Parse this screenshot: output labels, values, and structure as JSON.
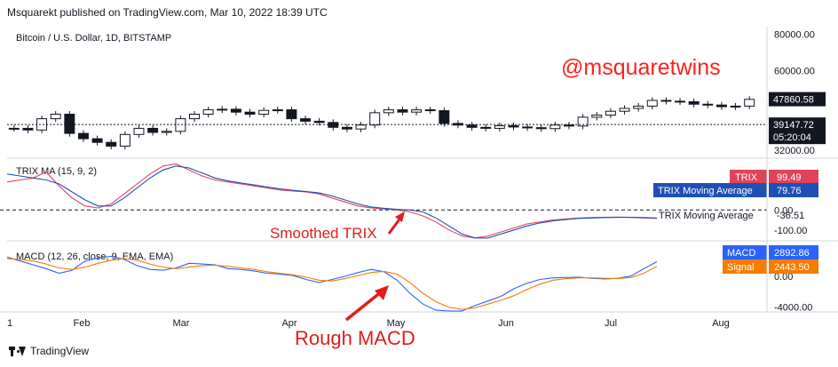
{
  "header": {
    "text": "Msquarekt published on TradingView.com, Mar 10, 2022 18:39 UTC"
  },
  "footer": {
    "brand": "TradingView"
  },
  "colors": {
    "trix": "#e0435a",
    "trix_ma": "#1e4fb4",
    "macd": "#2962ff",
    "signal": "#f57c00",
    "watermark": "#ff1f1f",
    "annotation": "#e31b1b",
    "candle": "#131722"
  },
  "chart_data": [
    {
      "type": "candlestick",
      "title": "Bitcoin / U.S. Dollar, 1D, BITSTAMP",
      "watermark": "@msquaretwins",
      "yticks": [
        "80000.00",
        "60000.00",
        "32000.00"
      ],
      "last_price_label": "47860.58",
      "crosshair_price_label": "39147.72",
      "countdown_label": "05:20:04",
      "ylim": [
        30000,
        85000
      ],
      "scale": "log",
      "closes": [
        38000,
        37500,
        41000,
        42500,
        36500,
        35000,
        34000,
        33000,
        36200,
        38000,
        36800,
        37100,
        41000,
        42500,
        44000,
        44200,
        43200,
        42500,
        43800,
        44000,
        41000,
        40200,
        39800,
        38300,
        37800,
        39000,
        43000,
        44000,
        43200,
        44000,
        43700,
        39500,
        39000,
        38300,
        38000,
        38800,
        38400,
        38200,
        37900,
        39000,
        38700,
        41500,
        42200,
        43500,
        44500,
        45300,
        47400,
        47100,
        46900,
        46000,
        45700,
        45100,
        45300,
        47800
      ],
      "series_note": ""
    },
    {
      "type": "line",
      "title": "TRIX MA (15, 9, 2)",
      "yticks": [
        "0.00",
        "-100.00"
      ],
      "ylim": [
        -150,
        250
      ],
      "series": [
        {
          "name": "TRIX",
          "last_label": "99.49",
          "values": [
            140,
            150,
            160,
            190,
            120,
            60,
            20,
            10,
            30,
            80,
            130,
            180,
            220,
            230,
            200,
            170,
            150,
            140,
            130,
            120,
            110,
            100,
            95,
            90,
            80,
            60,
            40,
            20,
            10,
            5,
            0,
            -10,
            -30,
            -60,
            -100,
            -130,
            -140,
            -130,
            -110,
            -90,
            -70,
            -60,
            -50,
            -45,
            -40,
            -38,
            -37,
            -36,
            -37,
            -40,
            -42,
            99
          ]
        },
        {
          "name": "TRIX Moving Average",
          "last_label": "79.76",
          "values": [
            180,
            170,
            160,
            150,
            130,
            90,
            50,
            20,
            20,
            60,
            110,
            160,
            200,
            220,
            210,
            185,
            160,
            145,
            135,
            125,
            115,
            105,
            98,
            92,
            85,
            70,
            50,
            30,
            15,
            8,
            3,
            0,
            -10,
            -40,
            -80,
            -120,
            -140,
            -140,
            -120,
            -100,
            -80,
            -65,
            -55,
            -48,
            -42,
            -40,
            -38,
            -37,
            -37,
            -38,
            -40,
            80
          ]
        }
      ],
      "extra_label_value": "-36.51",
      "extra_label_name": "TRIX Moving Average"
    },
    {
      "type": "line",
      "title": "MACD (12, 26, close, 9, EMA, EMA)",
      "yticks": [
        "0.00",
        "-4000.00"
      ],
      "ylim": [
        -4500,
        4500
      ],
      "series": [
        {
          "name": "MACD",
          "last_label": "2892.86",
          "values": [
            2500,
            2000,
            1500,
            1000,
            400,
            800,
            2000,
            2400,
            2600,
            2200,
            1400,
            900,
            800,
            1100,
            1700,
            1600,
            1500,
            1000,
            900,
            700,
            400,
            300,
            100,
            -400,
            -800,
            -400,
            0,
            500,
            900,
            600,
            -500,
            -2200,
            -3600,
            -4400,
            -5000,
            -4800,
            -3800,
            -3200,
            -2600,
            -1600,
            -900,
            -400,
            -200,
            -150,
            -100,
            -250,
            -350,
            -250,
            50,
            1000,
            1900,
            2893
          ]
        },
        {
          "name": "Signal",
          "last_label": "2443.50",
          "values": [
            2300,
            2200,
            2000,
            1600,
            1100,
            900,
            1200,
            1700,
            2100,
            2300,
            2100,
            1600,
            1200,
            1000,
            1200,
            1400,
            1450,
            1300,
            1100,
            900,
            600,
            400,
            200,
            -100,
            -500,
            -600,
            -300,
            100,
            500,
            650,
            300,
            -800,
            -2200,
            -3300,
            -4000,
            -4300,
            -4100,
            -3600,
            -3100,
            -2500,
            -1700,
            -1000,
            -500,
            -300,
            -200,
            -200,
            -250,
            -280,
            -150,
            400,
            1300,
            2444
          ]
        }
      ]
    }
  ],
  "xaxis": {
    "labels": [
      "Feb",
      "Mar",
      "Apr",
      "May",
      "Jun",
      "Jul",
      "Aug"
    ],
    "left_cut_label": "1"
  },
  "annotations": [
    {
      "text": "Smoothed TRIX"
    },
    {
      "text": "Rough MACD"
    }
  ]
}
